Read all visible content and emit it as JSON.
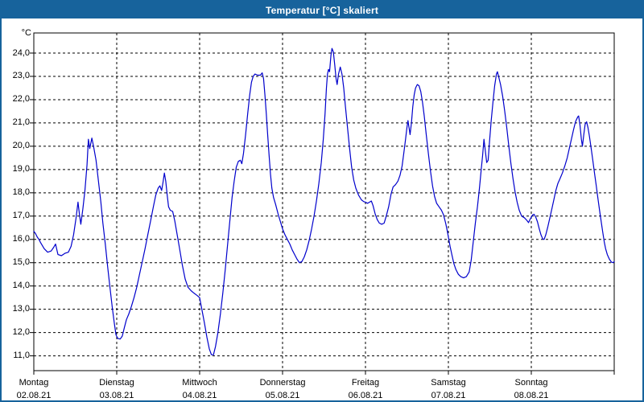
{
  "window": {
    "title": "Temperatur [°C] skaliert"
  },
  "colors": {
    "titlebar": "#17639c",
    "window_border": "#17639c",
    "background": "#ffffff",
    "title_text": "#ffffff",
    "label_text": "#000000",
    "grid": "#000000",
    "line": "#0000cc"
  },
  "chart_data": {
    "type": "line",
    "title": "Temperatur [°C] skaliert",
    "unit_label": "°C",
    "ylabel": "Temperatur [°C]",
    "xlabel": "",
    "ylim_grid": [
      11,
      24
    ],
    "y_ticks": [
      24,
      23,
      22,
      21,
      20,
      19,
      18,
      17,
      16,
      15,
      14,
      13,
      12,
      11
    ],
    "y_tick_labels": [
      "24,0",
      "23,0",
      "22,0",
      "21,0",
      "20,0",
      "19,0",
      "18,0",
      "17,0",
      "16,0",
      "15,0",
      "14,0",
      "13,0",
      "12,0",
      "11,0"
    ],
    "x_range_hours": [
      0,
      168
    ],
    "grid": "dashed",
    "legend_position": "none",
    "days": [
      {
        "day": "Montag",
        "date": "02.08.21"
      },
      {
        "day": "Dienstag",
        "date": "03.08.21"
      },
      {
        "day": "Mittwoch",
        "date": "04.08.21"
      },
      {
        "day": "Donnerstag",
        "date": "05.08.21"
      },
      {
        "day": "Freitag",
        "date": "06.08.21"
      },
      {
        "day": "Samstag",
        "date": "07.08.21"
      },
      {
        "day": "Sonntag",
        "date": "08.08.21"
      }
    ],
    "series": [
      {
        "name": "Temperatur",
        "color": "#0000cc",
        "points": [
          [
            0,
            16.35
          ],
          [
            0.5,
            16.25
          ],
          [
            1,
            16.1
          ],
          [
            1.5,
            16.0
          ],
          [
            2,
            15.85
          ],
          [
            3,
            15.6
          ],
          [
            4,
            15.45
          ],
          [
            5,
            15.5
          ],
          [
            5.7,
            15.65
          ],
          [
            6.3,
            15.8
          ],
          [
            7,
            15.35
          ],
          [
            8,
            15.3
          ],
          [
            9,
            15.4
          ],
          [
            10,
            15.45
          ],
          [
            10.8,
            15.7
          ],
          [
            11.5,
            16.2
          ],
          [
            12.2,
            16.9
          ],
          [
            12.8,
            17.6
          ],
          [
            13.2,
            17.1
          ],
          [
            13.6,
            16.65
          ],
          [
            14.2,
            17.3
          ],
          [
            14.8,
            18.1
          ],
          [
            15.4,
            19.2
          ],
          [
            15.8,
            20.3
          ],
          [
            16.2,
            19.9
          ],
          [
            16.8,
            20.35
          ],
          [
            17.3,
            20.0
          ],
          [
            18,
            19.4
          ],
          [
            18.7,
            18.5
          ],
          [
            19.4,
            17.6
          ],
          [
            20,
            16.7
          ],
          [
            20.7,
            15.8
          ],
          [
            21.4,
            14.8
          ],
          [
            22,
            14.0
          ],
          [
            22.7,
            13.1
          ],
          [
            23.3,
            12.4
          ],
          [
            23.8,
            11.9
          ],
          [
            24.3,
            11.75
          ],
          [
            25,
            11.72
          ],
          [
            25.6,
            11.85
          ],
          [
            26.2,
            12.2
          ],
          [
            26.8,
            12.55
          ],
          [
            27.5,
            12.8
          ],
          [
            28.2,
            13.1
          ],
          [
            29,
            13.5
          ],
          [
            29.8,
            13.95
          ],
          [
            30.6,
            14.5
          ],
          [
            31.4,
            15.05
          ],
          [
            32.2,
            15.6
          ],
          [
            33,
            16.2
          ],
          [
            33.8,
            16.8
          ],
          [
            34.6,
            17.4
          ],
          [
            35.3,
            17.9
          ],
          [
            36,
            18.2
          ],
          [
            36.5,
            18.3
          ],
          [
            37,
            18.1
          ],
          [
            37.4,
            18.45
          ],
          [
            37.8,
            18.85
          ],
          [
            38.2,
            18.5
          ],
          [
            38.6,
            17.9
          ],
          [
            39,
            17.4
          ],
          [
            39.5,
            17.25
          ],
          [
            40.2,
            17.2
          ],
          [
            40.8,
            16.8
          ],
          [
            41.5,
            16.2
          ],
          [
            42.2,
            15.6
          ],
          [
            43,
            14.9
          ],
          [
            43.8,
            14.3
          ],
          [
            44.6,
            13.95
          ],
          [
            45.5,
            13.8
          ],
          [
            46.3,
            13.7
          ],
          [
            47.2,
            13.6
          ],
          [
            48,
            13.5
          ],
          [
            48.7,
            12.95
          ],
          [
            49.4,
            12.4
          ],
          [
            50.1,
            11.8
          ],
          [
            50.8,
            11.3
          ],
          [
            51.4,
            11.05
          ],
          [
            52,
            11.05
          ],
          [
            52.6,
            11.4
          ],
          [
            53.3,
            12.0
          ],
          [
            54,
            12.8
          ],
          [
            54.7,
            13.7
          ],
          [
            55.4,
            14.7
          ],
          [
            56.1,
            15.8
          ],
          [
            56.8,
            16.9
          ],
          [
            57.4,
            17.8
          ],
          [
            58,
            18.5
          ],
          [
            58.6,
            19.1
          ],
          [
            59.2,
            19.35
          ],
          [
            59.8,
            19.4
          ],
          [
            60.2,
            19.25
          ],
          [
            60.7,
            19.7
          ],
          [
            61.3,
            20.5
          ],
          [
            61.9,
            21.4
          ],
          [
            62.5,
            22.2
          ],
          [
            63,
            22.75
          ],
          [
            63.5,
            23.0
          ],
          [
            64,
            23.1
          ],
          [
            64.8,
            23.05
          ],
          [
            65.6,
            23.05
          ],
          [
            66.1,
            23.15
          ],
          [
            66.5,
            22.9
          ],
          [
            66.9,
            22.2
          ],
          [
            67.3,
            21.4
          ],
          [
            67.7,
            20.5
          ],
          [
            68.1,
            19.6
          ],
          [
            68.5,
            18.8
          ],
          [
            68.9,
            18.2
          ],
          [
            69.4,
            17.8
          ],
          [
            70,
            17.5
          ],
          [
            70.7,
            17.1
          ],
          [
            71.4,
            16.75
          ],
          [
            72,
            16.45
          ],
          [
            72.7,
            16.2
          ],
          [
            73.4,
            16.0
          ],
          [
            74.1,
            15.8
          ],
          [
            74.8,
            15.55
          ],
          [
            75.5,
            15.35
          ],
          [
            76.2,
            15.15
          ],
          [
            76.9,
            15.0
          ],
          [
            77.6,
            15.05
          ],
          [
            78.3,
            15.25
          ],
          [
            79,
            15.55
          ],
          [
            79.7,
            15.95
          ],
          [
            80.4,
            16.45
          ],
          [
            81.1,
            17.0
          ],
          [
            81.8,
            17.65
          ],
          [
            82.5,
            18.4
          ],
          [
            83.2,
            19.3
          ],
          [
            83.8,
            20.3
          ],
          [
            84.3,
            21.4
          ],
          [
            84.7,
            22.5
          ],
          [
            85,
            23.1
          ],
          [
            85.3,
            23.3
          ],
          [
            85.6,
            23.2
          ],
          [
            86,
            23.9
          ],
          [
            86.3,
            24.2
          ],
          [
            86.7,
            24.05
          ],
          [
            87.1,
            23.5
          ],
          [
            87.5,
            22.9
          ],
          [
            87.8,
            22.65
          ],
          [
            88.2,
            23.1
          ],
          [
            88.7,
            23.4
          ],
          [
            89.2,
            23.1
          ],
          [
            89.7,
            22.5
          ],
          [
            90.2,
            21.7
          ],
          [
            90.8,
            20.8
          ],
          [
            91.4,
            19.9
          ],
          [
            92,
            19.1
          ],
          [
            92.6,
            18.55
          ],
          [
            93.2,
            18.2
          ],
          [
            94,
            17.9
          ],
          [
            94.8,
            17.7
          ],
          [
            95.5,
            17.62
          ],
          [
            96,
            17.6
          ],
          [
            96.6,
            17.55
          ],
          [
            97.2,
            17.6
          ],
          [
            97.7,
            17.65
          ],
          [
            98.2,
            17.45
          ],
          [
            98.8,
            17.1
          ],
          [
            99.4,
            16.85
          ],
          [
            100,
            16.7
          ],
          [
            100.7,
            16.65
          ],
          [
            101.4,
            16.7
          ],
          [
            102,
            17.0
          ],
          [
            102.7,
            17.4
          ],
          [
            103.4,
            17.95
          ],
          [
            104,
            18.25
          ],
          [
            104.7,
            18.35
          ],
          [
            105.4,
            18.5
          ],
          [
            106,
            18.75
          ],
          [
            106.6,
            19.15
          ],
          [
            107.1,
            19.7
          ],
          [
            107.6,
            20.3
          ],
          [
            108,
            20.8
          ],
          [
            108.3,
            21.1
          ],
          [
            108.6,
            20.8
          ],
          [
            108.9,
            20.5
          ],
          [
            109.3,
            21.0
          ],
          [
            109.7,
            21.7
          ],
          [
            110.1,
            22.2
          ],
          [
            110.5,
            22.5
          ],
          [
            111,
            22.65
          ],
          [
            111.5,
            22.6
          ],
          [
            112,
            22.35
          ],
          [
            112.5,
            21.9
          ],
          [
            113,
            21.3
          ],
          [
            113.6,
            20.5
          ],
          [
            114.2,
            19.7
          ],
          [
            114.8,
            18.95
          ],
          [
            115.4,
            18.3
          ],
          [
            116,
            17.85
          ],
          [
            116.6,
            17.55
          ],
          [
            117.3,
            17.4
          ],
          [
            118,
            17.25
          ],
          [
            118.6,
            17.05
          ],
          [
            119.2,
            16.7
          ],
          [
            119.7,
            16.35
          ],
          [
            120,
            16.1
          ],
          [
            120.5,
            15.7
          ],
          [
            121,
            15.35
          ],
          [
            121.6,
            14.95
          ],
          [
            122.2,
            14.7
          ],
          [
            122.9,
            14.5
          ],
          [
            123.6,
            14.4
          ],
          [
            124.4,
            14.35
          ],
          [
            125.2,
            14.4
          ],
          [
            126,
            14.6
          ],
          [
            126.6,
            15.1
          ],
          [
            127.2,
            15.9
          ],
          [
            127.8,
            16.7
          ],
          [
            128.4,
            17.4
          ],
          [
            129,
            18.2
          ],
          [
            129.5,
            19.0
          ],
          [
            129.9,
            19.6
          ],
          [
            130.3,
            20.3
          ],
          [
            130.7,
            19.8
          ],
          [
            131.1,
            19.3
          ],
          [
            131.5,
            19.4
          ],
          [
            131.9,
            20.2
          ],
          [
            132.4,
            21.1
          ],
          [
            132.9,
            21.9
          ],
          [
            133.4,
            22.6
          ],
          [
            133.9,
            23.1
          ],
          [
            134.2,
            23.2
          ],
          [
            134.6,
            22.95
          ],
          [
            135.1,
            22.65
          ],
          [
            135.7,
            22.15
          ],
          [
            136.3,
            21.5
          ],
          [
            136.9,
            20.8
          ],
          [
            137.5,
            20.0
          ],
          [
            138.1,
            19.25
          ],
          [
            138.7,
            18.6
          ],
          [
            139.3,
            18.05
          ],
          [
            139.9,
            17.6
          ],
          [
            140.5,
            17.25
          ],
          [
            141.2,
            17.0
          ],
          [
            142,
            16.93
          ],
          [
            142.7,
            16.82
          ],
          [
            143.2,
            16.72
          ],
          [
            143.6,
            16.85
          ],
          [
            144,
            16.95
          ],
          [
            144.4,
            17.05
          ],
          [
            144.8,
            17.08
          ],
          [
            145.3,
            16.95
          ],
          [
            145.8,
            16.75
          ],
          [
            146.3,
            16.45
          ],
          [
            146.8,
            16.2
          ],
          [
            147.3,
            16.02
          ],
          [
            147.7,
            16.0
          ],
          [
            148.2,
            16.2
          ],
          [
            148.8,
            16.55
          ],
          [
            149.4,
            16.95
          ],
          [
            150,
            17.35
          ],
          [
            150.6,
            17.75
          ],
          [
            151.1,
            18.1
          ],
          [
            151.7,
            18.4
          ],
          [
            152.3,
            18.6
          ],
          [
            153,
            18.85
          ],
          [
            153.7,
            19.15
          ],
          [
            154.4,
            19.5
          ],
          [
            155,
            19.9
          ],
          [
            155.6,
            20.3
          ],
          [
            156.2,
            20.7
          ],
          [
            156.8,
            21.05
          ],
          [
            157.4,
            21.25
          ],
          [
            157.7,
            21.3
          ],
          [
            158.1,
            20.9
          ],
          [
            158.5,
            20.3
          ],
          [
            158.8,
            20.0
          ],
          [
            159.2,
            20.5
          ],
          [
            159.6,
            20.95
          ],
          [
            160,
            21.05
          ],
          [
            160.4,
            20.8
          ],
          [
            160.8,
            20.45
          ],
          [
            161.3,
            19.95
          ],
          [
            161.8,
            19.4
          ],
          [
            162.3,
            18.85
          ],
          [
            162.8,
            18.3
          ],
          [
            163.3,
            17.75
          ],
          [
            163.8,
            17.2
          ],
          [
            164.3,
            16.7
          ],
          [
            164.7,
            16.3
          ],
          [
            165.1,
            15.9
          ],
          [
            165.5,
            15.6
          ],
          [
            166,
            15.35
          ],
          [
            166.6,
            15.15
          ],
          [
            167.2,
            15.02
          ],
          [
            167.7,
            15.0
          ],
          [
            168,
            15.05
          ]
        ]
      }
    ]
  }
}
